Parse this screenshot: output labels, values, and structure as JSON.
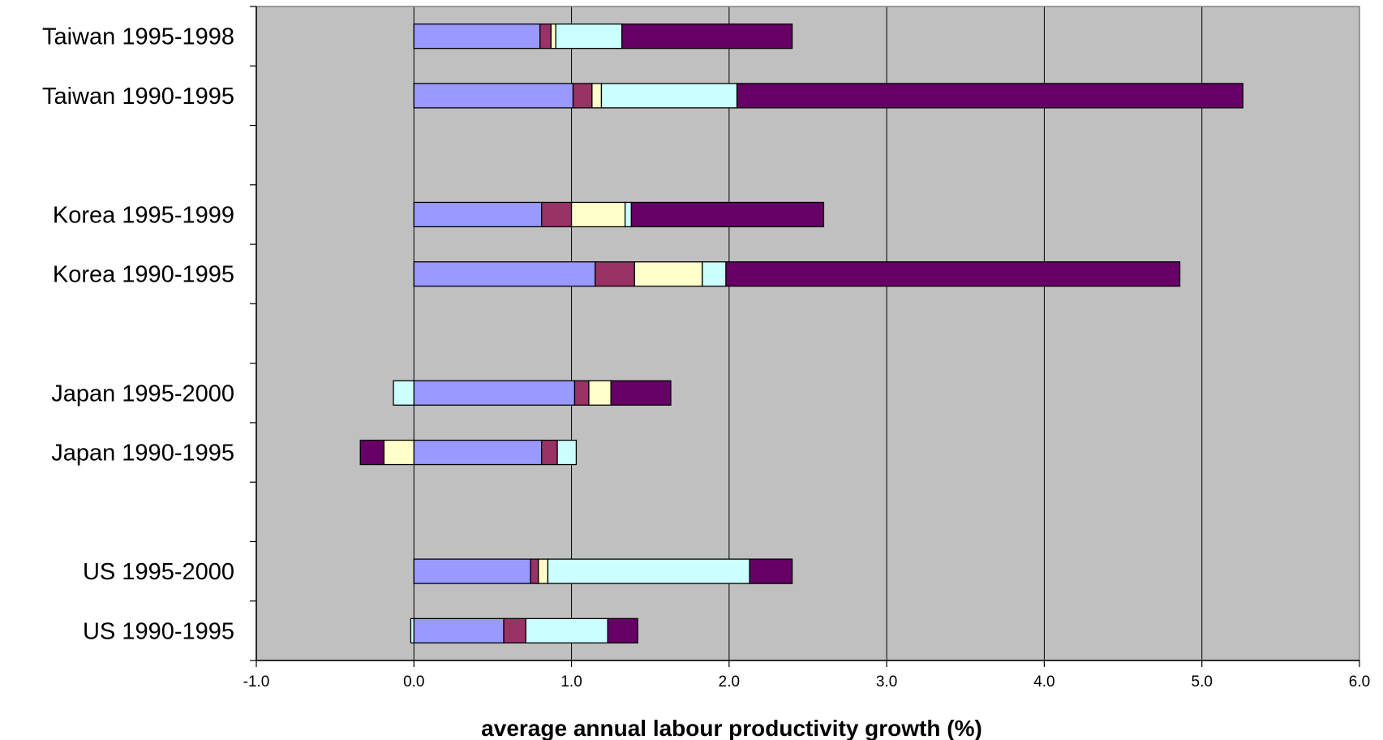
{
  "chart_data": {
    "type": "bar",
    "orientation": "horizontal",
    "stacked": true,
    "title": "",
    "xlabel": "average annual labour productivity growth (%)",
    "ylabel": "",
    "xlim": [
      -1.0,
      6.0
    ],
    "x_ticks": [
      -1.0,
      0.0,
      1.0,
      2.0,
      3.0,
      4.0,
      5.0,
      6.0
    ],
    "x_tick_labels": [
      "-1.0",
      "0.0",
      "1.0",
      "2.0",
      "3.0",
      "4.0",
      "5.0",
      "6.0"
    ],
    "grid": "vertical",
    "legend": "none",
    "plot_background": "#c0c0c0",
    "category_groups": [
      [
        "Taiwan 1995-1998",
        "Taiwan 1990-1995"
      ],
      [
        "Korea 1995-1999",
        "Korea 1990-1995"
      ],
      [
        "Japan 1995-2000",
        "Japan 1990-1995"
      ],
      [
        "US 1995-2000",
        "US 1990-1995"
      ]
    ],
    "categories": [
      "Taiwan 1995-1998",
      "Taiwan 1990-1995",
      "Korea 1995-1999",
      "Korea 1990-1995",
      "Japan 1995-2000",
      "Japan 1990-1995",
      "US 1995-2000",
      "US 1990-1995"
    ],
    "series": [
      {
        "color": "#9999ff",
        "values": [
          0.8,
          1.01,
          0.81,
          1.15,
          1.02,
          0.81,
          0.74,
          0.57
        ]
      },
      {
        "color": "#993366",
        "values": [
          0.07,
          0.12,
          0.19,
          0.25,
          0.09,
          0.1,
          0.05,
          0.14
        ]
      },
      {
        "color": "#ffffcc",
        "values": [
          0.03,
          0.06,
          0.34,
          0.43,
          0.14,
          -0.19,
          0.06,
          0.0
        ]
      },
      {
        "color": "#ccffff",
        "values": [
          0.42,
          0.86,
          0.04,
          0.15,
          -0.13,
          0.12,
          1.28,
          0.52
        ]
      },
      {
        "color": "#660066",
        "values": [
          1.08,
          3.21,
          1.22,
          2.88,
          0.38,
          -0.15,
          0.27,
          0.19
        ]
      },
      {
        "color": "#ccffff",
        "values": [
          0,
          0,
          0,
          0,
          0,
          0,
          0,
          -0.02
        ]
      }
    ]
  }
}
